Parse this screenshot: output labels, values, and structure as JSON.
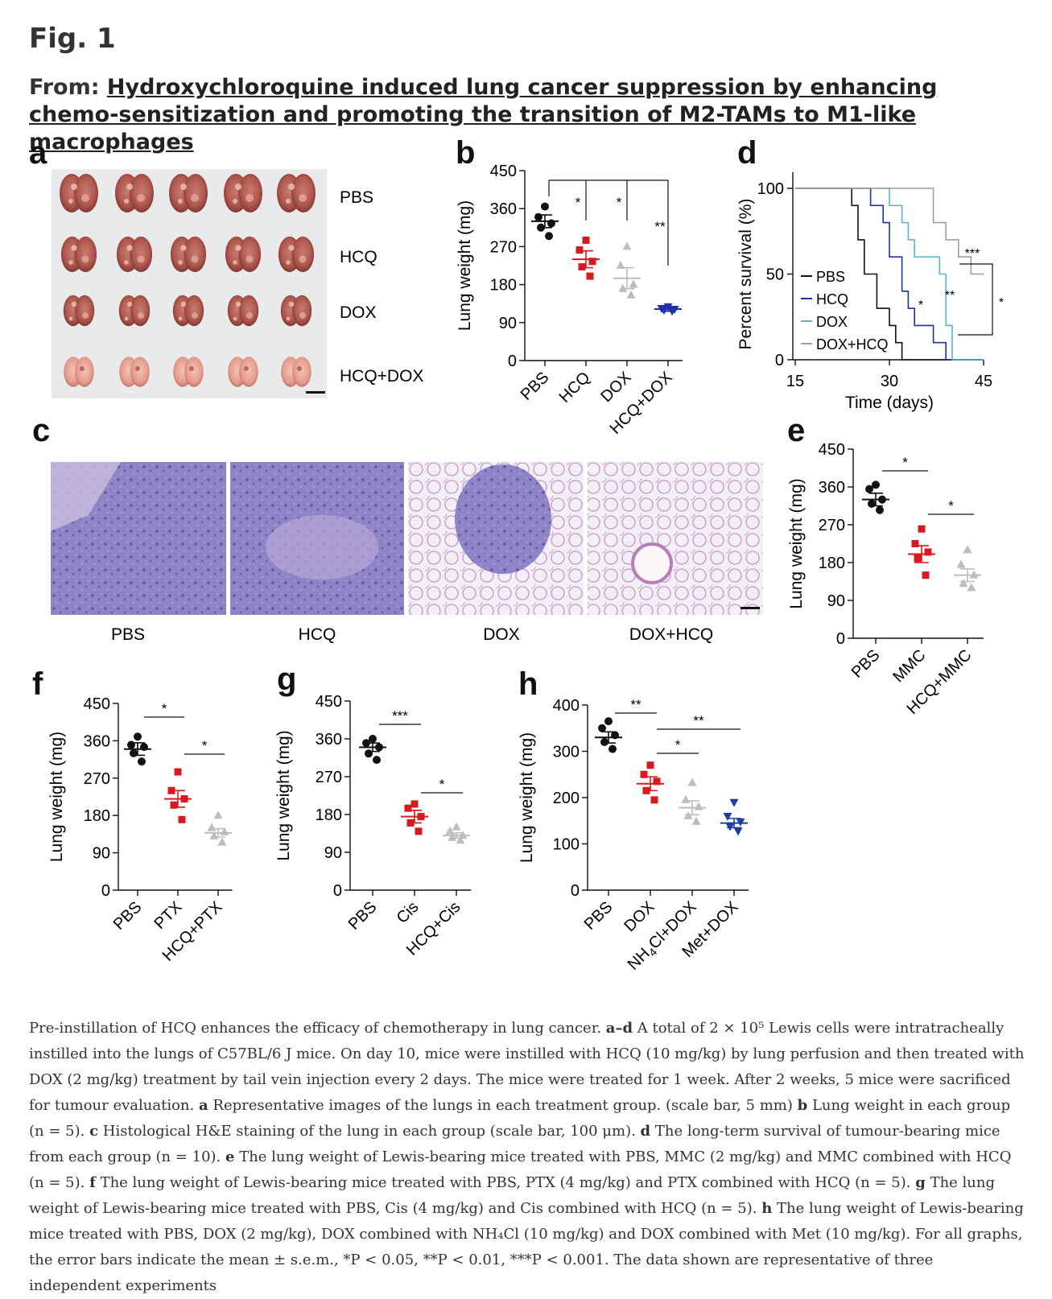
{
  "figure_title": "Fig. 1",
  "from_label": "From:",
  "article_title": "Hydroxychloroquine induced lung cancer suppression by enhancing chemo-sensitization and promoting the transition of M2-TAMs to M1-like macrophages",
  "panels": {
    "a": "a",
    "b": "b",
    "c": "c",
    "d": "d",
    "e": "e",
    "f": "f",
    "g": "g",
    "h": "h"
  },
  "panel_a": {
    "row_labels": [
      "PBS",
      "HCQ",
      "DOX",
      "HCQ+DOX"
    ]
  },
  "panel_c": {
    "labels": [
      "PBS",
      "HCQ",
      "DOX",
      "DOX+HCQ"
    ]
  },
  "colors": {
    "black": "#111111",
    "red": "#d8191f",
    "lightgray": "#bdbdbd",
    "blue": "#1f2fa8",
    "teal": "#5bb5c6",
    "gray": "#9e9e9e",
    "navy": "#1f3f9f"
  },
  "chart_data": [
    {
      "panel": "b",
      "type": "scatter",
      "ylabel": "Lung weight (mg)",
      "ylim": [
        0,
        450
      ],
      "yticks": [
        0,
        90,
        180,
        270,
        360,
        450
      ],
      "categories": [
        "PBS",
        "HCQ",
        "DOX",
        "HCQ+DOX"
      ],
      "groups": [
        {
          "name": "PBS",
          "mean": 330,
          "sem": 15,
          "points": [
            365,
            340,
            325,
            315,
            295
          ],
          "color": "black",
          "marker": "circle"
        },
        {
          "name": "HCQ",
          "mean": 240,
          "sem": 20,
          "points": [
            285,
            262,
            235,
            222,
            200
          ],
          "color": "red",
          "marker": "square"
        },
        {
          "name": "DOX",
          "mean": 195,
          "sem": 25,
          "points": [
            270,
            225,
            180,
            170,
            155
          ],
          "color": "lightgray",
          "marker": "triangle"
        },
        {
          "name": "HCQ+DOX",
          "mean": 122,
          "sem": 5,
          "points": [
            128,
            124,
            122,
            120,
            118
          ],
          "color": "blue",
          "marker": "triangle-down"
        }
      ],
      "significance": [
        {
          "from": 0,
          "to": 1,
          "label": "*"
        },
        {
          "from": 0,
          "to": 2,
          "label": "*"
        },
        {
          "from": 0,
          "to": 3,
          "label": "**"
        }
      ]
    },
    {
      "panel": "d",
      "type": "line",
      "xlabel": "Time (days)",
      "ylabel": "Percent survival (%)",
      "xlim": [
        15,
        45
      ],
      "xticks": [
        15,
        30,
        45
      ],
      "ylim": [
        0,
        100
      ],
      "yticks": [
        0,
        50,
        100
      ],
      "series": [
        {
          "name": "PBS",
          "color": "black",
          "steps": [
            [
              15,
              100
            ],
            [
              24,
              100
            ],
            [
              24,
              90
            ],
            [
              25,
              90
            ],
            [
              25,
              70
            ],
            [
              26,
              70
            ],
            [
              26,
              50
            ],
            [
              28,
              50
            ],
            [
              28,
              30
            ],
            [
              30,
              30
            ],
            [
              30,
              20
            ],
            [
              31,
              20
            ],
            [
              31,
              10
            ],
            [
              32,
              10
            ],
            [
              32,
              0
            ],
            [
              45,
              0
            ]
          ]
        },
        {
          "name": "HCQ",
          "color": "blue",
          "steps": [
            [
              15,
              100
            ],
            [
              27,
              100
            ],
            [
              27,
              90
            ],
            [
              29,
              90
            ],
            [
              29,
              80
            ],
            [
              30,
              80
            ],
            [
              30,
              60
            ],
            [
              32,
              60
            ],
            [
              32,
              40
            ],
            [
              33,
              40
            ],
            [
              33,
              30
            ],
            [
              34,
              30
            ],
            [
              34,
              20
            ],
            [
              37,
              20
            ],
            [
              37,
              10
            ],
            [
              39,
              10
            ],
            [
              39,
              0
            ],
            [
              45,
              0
            ]
          ]
        },
        {
          "name": "DOX",
          "color": "teal",
          "steps": [
            [
              15,
              100
            ],
            [
              30,
              100
            ],
            [
              30,
              90
            ],
            [
              32,
              90
            ],
            [
              32,
              80
            ],
            [
              33,
              80
            ],
            [
              33,
              70
            ],
            [
              34,
              70
            ],
            [
              34,
              60
            ],
            [
              38,
              60
            ],
            [
              38,
              50
            ],
            [
              39,
              50
            ],
            [
              39,
              20
            ],
            [
              40,
              20
            ],
            [
              40,
              10
            ],
            [
              40,
              10
            ],
            [
              40,
              0
            ],
            [
              45,
              0
            ]
          ]
        },
        {
          "name": "DOX+HCQ",
          "color": "gray",
          "steps": [
            [
              15,
              100
            ],
            [
              37,
              100
            ],
            [
              37,
              80
            ],
            [
              39,
              80
            ],
            [
              39,
              70
            ],
            [
              41,
              70
            ],
            [
              41,
              60
            ],
            [
              43,
              60
            ],
            [
              43,
              50
            ],
            [
              45,
              50
            ]
          ]
        }
      ],
      "annotations": [
        "*",
        "**",
        "***",
        "*"
      ]
    },
    {
      "panel": "e",
      "type": "scatter",
      "ylabel": "Lung weight (mg)",
      "ylim": [
        0,
        450
      ],
      "yticks": [
        0,
        90,
        180,
        270,
        360,
        450
      ],
      "categories": [
        "PBS",
        "MMC",
        "HCQ+MMC"
      ],
      "groups": [
        {
          "name": "PBS",
          "mean": 330,
          "sem": 15,
          "points": [
            365,
            355,
            330,
            320,
            305
          ],
          "color": "black",
          "marker": "circle"
        },
        {
          "name": "MMC",
          "mean": 200,
          "sem": 20,
          "points": [
            260,
            225,
            205,
            190,
            150
          ],
          "color": "red",
          "marker": "square"
        },
        {
          "name": "HCQ+MMC",
          "mean": 150,
          "sem": 15,
          "points": [
            210,
            175,
            150,
            130,
            120
          ],
          "color": "lightgray",
          "marker": "triangle"
        }
      ],
      "significance": [
        {
          "from": 0,
          "to": 1,
          "label": "*"
        },
        {
          "from": 1,
          "to": 2,
          "label": "*"
        }
      ]
    },
    {
      "panel": "f",
      "type": "scatter",
      "ylabel": "Lung weight (mg)",
      "ylim": [
        0,
        450
      ],
      "yticks": [
        0,
        90,
        180,
        270,
        360,
        450
      ],
      "categories": [
        "PBS",
        "PTX",
        "HCQ+PTX"
      ],
      "groups": [
        {
          "name": "PBS",
          "mean": 340,
          "sem": 15,
          "points": [
            370,
            350,
            345,
            330,
            310
          ],
          "color": "black",
          "marker": "circle"
        },
        {
          "name": "PTX",
          "mean": 220,
          "sem": 20,
          "points": [
            285,
            240,
            220,
            205,
            170
          ],
          "color": "red",
          "marker": "square"
        },
        {
          "name": "HCQ+PTX",
          "mean": 138,
          "sem": 10,
          "points": [
            180,
            150,
            140,
            130,
            115
          ],
          "color": "lightgray",
          "marker": "triangle"
        }
      ],
      "significance": [
        {
          "from": 0,
          "to": 1,
          "label": "*"
        },
        {
          "from": 1,
          "to": 2,
          "label": "*"
        }
      ]
    },
    {
      "panel": "g",
      "type": "scatter",
      "ylabel": "Lung weight (mg)",
      "ylim": [
        0,
        450
      ],
      "yticks": [
        0,
        90,
        180,
        270,
        360,
        450
      ],
      "categories": [
        "PBS",
        "Cis",
        "HCQ+Cis"
      ],
      "groups": [
        {
          "name": "PBS",
          "mean": 340,
          "sem": 10,
          "points": [
            360,
            350,
            340,
            325,
            310
          ],
          "color": "black",
          "marker": "circle"
        },
        {
          "name": "Cis",
          "mean": 175,
          "sem": 15,
          "points": [
            205,
            195,
            175,
            160,
            140
          ],
          "color": "red",
          "marker": "square"
        },
        {
          "name": "HCQ+Cis",
          "mean": 130,
          "sem": 6,
          "points": [
            150,
            140,
            130,
            125,
            118
          ],
          "color": "lightgray",
          "marker": "triangle"
        }
      ],
      "significance": [
        {
          "from": 0,
          "to": 1,
          "label": "***"
        },
        {
          "from": 1,
          "to": 2,
          "label": "*"
        }
      ]
    },
    {
      "panel": "h",
      "type": "scatter",
      "ylabel": "Lung weight (mg)",
      "ylim": [
        0,
        400
      ],
      "yticks": [
        0,
        100,
        200,
        300,
        400
      ],
      "categories": [
        "PBS",
        "DOX",
        "NH4Cl+DOX",
        "Met+DOX"
      ],
      "groups": [
        {
          "name": "PBS",
          "mean": 330,
          "sem": 12,
          "points": [
            365,
            350,
            335,
            320,
            305
          ],
          "color": "black",
          "marker": "circle"
        },
        {
          "name": "DOX",
          "mean": 230,
          "sem": 15,
          "points": [
            270,
            250,
            235,
            215,
            195
          ],
          "color": "red",
          "marker": "square"
        },
        {
          "name": "NH4Cl+DOX",
          "mean": 178,
          "sem": 15,
          "points": [
            232,
            195,
            180,
            160,
            148
          ],
          "color": "lightgray",
          "marker": "triangle"
        },
        {
          "name": "Met+DOX",
          "mean": 145,
          "sem": 10,
          "points": [
            190,
            160,
            148,
            138,
            128
          ],
          "color": "navy",
          "marker": "triangle-down"
        }
      ],
      "significance": [
        {
          "from": 0,
          "to": 1,
          "label": "**"
        },
        {
          "from": 1,
          "to": 2,
          "label": "*"
        },
        {
          "from": 1,
          "to": 3,
          "label": "**"
        }
      ]
    }
  ],
  "caption": {
    "intro": "Pre-instillation of HCQ enhances the efficacy of chemotherapy in lung cancer.",
    "ad_label": "a–d",
    "ad_text": "A total of 2 × 10⁵ Lewis cells were intratracheally instilled into the lungs of C57BL/6 J mice. On day 10, mice were instilled with HCQ (10 mg/kg) by lung perfusion and then treated with DOX (2 mg/kg) treatment by tail vein injection every 2 days. The mice were treated for 1 week. After 2 weeks, 5 mice were sacrificed for tumour evaluation.",
    "a_label": "a",
    "a_text": "Representative images of the lungs in each treatment group. (scale bar, 5 mm)",
    "b_label": "b",
    "b_text": "Lung weight in each group (n = 5).",
    "c_label": "c",
    "c_text": "Histological H&E staining of the lung in each group (scale bar, 100 μm).",
    "d_label": "d",
    "d_text": "The long-term survival of tumour-bearing mice from each group (n = 10).",
    "e_label": "e",
    "e_text": "The lung weight of Lewis-bearing mice treated with PBS, MMC (2 mg/kg) and MMC combined with HCQ (n = 5).",
    "f_label": "f",
    "f_text": "The lung weight of Lewis-bearing mice treated with PBS, PTX (4 mg/kg) and PTX combined with HCQ (n = 5).",
    "g_label": "g",
    "g_text": "The lung weight of Lewis-bearing mice treated with PBS, Cis (4 mg/kg) and Cis combined with HCQ (n = 5).",
    "h_label": "h",
    "h_text": "The lung weight of Lewis-bearing mice treated with PBS, DOX (2 mg/kg), DOX combined with NH₄Cl (10 mg/kg) and DOX combined with Met (10 mg/kg). For all graphs, the error bars indicate the mean ± s.e.m., *P < 0.05, **P < 0.01, ***P < 0.001. The data shown are representative of three independent experiments"
  }
}
